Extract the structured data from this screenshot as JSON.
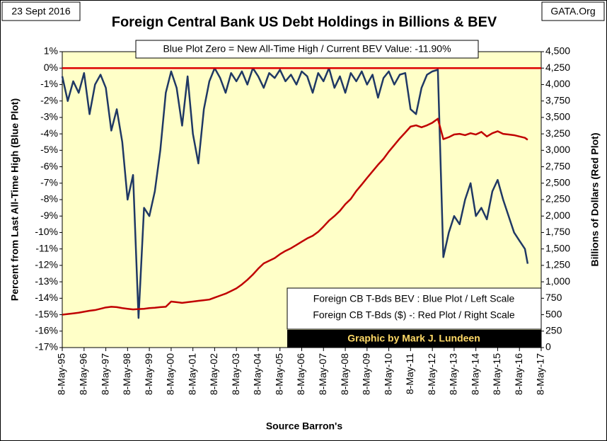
{
  "chart_data": {
    "type": "line",
    "title": "Foreign Central Bank US Debt Holdings in Billions & BEV",
    "date_label": "23 Sept 2016",
    "source_site": "GATA.Org",
    "annotation": "Blue Plot Zero = New All-Time High / Current BEV Value: -11.90%",
    "legend_lines": [
      "Foreign CB T-Bds BEV : Blue Plot / Left Scale",
      "Foreign CB T-Bds ($)  -: Red Plot / Right Scale"
    ],
    "credit": "Graphic by Mark J. Lundeen",
    "xlabel": "Source Barron's",
    "ylabel": "Percent from Last All-Time High     (Blue Plot)",
    "y2label": "Billions of Dollars    (Red Plot)",
    "hline": 0,
    "hline_color": "#dd0000",
    "x": [
      "1995-05-08",
      "1995-08-08",
      "1995-11-08",
      "1996-02-08",
      "1996-05-08",
      "1996-08-08",
      "1996-11-08",
      "1997-02-08",
      "1997-05-08",
      "1997-08-08",
      "1997-11-08",
      "1998-02-08",
      "1998-05-08",
      "1998-08-08",
      "1998-11-08",
      "1999-02-08",
      "1999-05-08",
      "1999-08-08",
      "1999-11-08",
      "2000-02-08",
      "2000-05-08",
      "2000-08-08",
      "2000-11-08",
      "2001-02-08",
      "2001-05-08",
      "2001-08-08",
      "2001-11-08",
      "2002-02-08",
      "2002-05-08",
      "2002-08-08",
      "2002-11-08",
      "2003-02-08",
      "2003-05-08",
      "2003-08-08",
      "2003-11-08",
      "2004-02-08",
      "2004-05-08",
      "2004-08-08",
      "2004-11-08",
      "2005-02-08",
      "2005-05-08",
      "2005-08-08",
      "2005-11-08",
      "2006-02-08",
      "2006-05-08",
      "2006-08-08",
      "2006-11-08",
      "2007-02-08",
      "2007-05-08",
      "2007-08-08",
      "2007-11-08",
      "2008-02-08",
      "2008-05-08",
      "2008-08-08",
      "2008-11-08",
      "2009-02-08",
      "2009-05-08",
      "2009-08-08",
      "2009-11-08",
      "2010-02-08",
      "2010-05-08",
      "2010-08-08",
      "2010-11-08",
      "2011-02-08",
      "2011-05-08",
      "2011-08-08",
      "2011-11-08",
      "2012-02-08",
      "2012-05-08",
      "2012-08-08",
      "2012-11-08",
      "2013-02-08",
      "2013-05-08",
      "2013-08-08",
      "2013-11-08",
      "2014-02-08",
      "2014-05-08",
      "2014-08-08",
      "2014-11-08",
      "2015-02-08",
      "2015-05-08",
      "2015-08-08",
      "2015-11-08",
      "2016-02-08",
      "2016-05-08",
      "2016-08-08",
      "2016-09-23"
    ],
    "series": [
      {
        "name": "Foreign CB T-Bds BEV",
        "color": "#1f3864",
        "axis": "y",
        "values": [
          -0.5,
          -2,
          -0.8,
          -1.5,
          -0.3,
          -2.8,
          -1,
          -0.4,
          -1.2,
          -3.8,
          -2.5,
          -4.5,
          -8,
          -6.5,
          -15.2,
          -8.5,
          -9,
          -7.5,
          -5,
          -1.5,
          -0.2,
          -1.2,
          -3.5,
          -0.5,
          -4,
          -5.8,
          -2.5,
          -0.8,
          0,
          -0.6,
          -1.5,
          -0.3,
          -0.8,
          -0.2,
          -1,
          0,
          -0.5,
          -1.2,
          -0.3,
          -0.6,
          -0.1,
          -0.8,
          -0.4,
          -1,
          -0.2,
          -0.5,
          -1.5,
          -0.3,
          -0.8,
          0,
          -1.2,
          -0.5,
          -1.5,
          -0.3,
          -0.8,
          -0.2,
          -1,
          -0.4,
          -1.8,
          -0.6,
          -0.2,
          -1,
          -0.4,
          -0.3,
          -2.5,
          -2.8,
          -1.2,
          -0.4,
          -0.2,
          -0.1,
          -11.5,
          -10,
          -9,
          -9.5,
          -8,
          -7,
          -9,
          -8.5,
          -9.2,
          -7.5,
          -6.8,
          -8,
          -9,
          -10,
          -10.5,
          -11,
          -11.9
        ]
      },
      {
        "name": "Foreign CB T-Bds ($)",
        "color": "#c00000",
        "axis": "y2",
        "values": [
          500,
          510,
          520,
          530,
          545,
          560,
          570,
          590,
          610,
          620,
          615,
          600,
          590,
          580,
          585,
          590,
          600,
          605,
          615,
          620,
          700,
          690,
          680,
          690,
          700,
          710,
          720,
          730,
          760,
          790,
          820,
          860,
          900,
          960,
          1030,
          1110,
          1200,
          1280,
          1320,
          1360,
          1420,
          1470,
          1510,
          1560,
          1610,
          1660,
          1700,
          1760,
          1840,
          1930,
          2000,
          2080,
          2180,
          2260,
          2380,
          2480,
          2580,
          2680,
          2780,
          2870,
          2980,
          3080,
          3180,
          3270,
          3360,
          3380,
          3350,
          3380,
          3420,
          3480,
          3170,
          3200,
          3240,
          3250,
          3230,
          3260,
          3240,
          3280,
          3210,
          3260,
          3290,
          3250,
          3240,
          3230,
          3210,
          3190,
          3160
        ]
      }
    ],
    "xlim": [
      "1995-05-08",
      "2017-05-08"
    ],
    "xticks": [
      {
        "value": "1995-05-08",
        "label": "8-May-95"
      },
      {
        "value": "1996-05-08",
        "label": "8-May-96"
      },
      {
        "value": "1997-05-08",
        "label": "8-May-97"
      },
      {
        "value": "1998-05-08",
        "label": "8-May-98"
      },
      {
        "value": "1999-05-08",
        "label": "8-May-99"
      },
      {
        "value": "2000-05-08",
        "label": "8-May-00"
      },
      {
        "value": "2001-05-08",
        "label": "8-May-01"
      },
      {
        "value": "2002-05-08",
        "label": "8-May-02"
      },
      {
        "value": "2003-05-08",
        "label": "8-May-03"
      },
      {
        "value": "2004-05-08",
        "label": "8-May-04"
      },
      {
        "value": "2005-05-08",
        "label": "8-May-05"
      },
      {
        "value": "2006-05-08",
        "label": "8-May-06"
      },
      {
        "value": "2007-05-08",
        "label": "8-May-07"
      },
      {
        "value": "2008-05-08",
        "label": "8-May-08"
      },
      {
        "value": "2009-05-08",
        "label": "8-May-09"
      },
      {
        "value": "2010-05-08",
        "label": "8-May-10"
      },
      {
        "value": "2011-05-08",
        "label": "8-May-11"
      },
      {
        "value": "2012-05-08",
        "label": "8-May-12"
      },
      {
        "value": "2013-05-08",
        "label": "8-May-13"
      },
      {
        "value": "2014-05-08",
        "label": "8-May-14"
      },
      {
        "value": "2015-05-08",
        "label": "8-May-15"
      },
      {
        "value": "2016-05-08",
        "label": "8-May-16"
      },
      {
        "value": "2017-05-08",
        "label": "8-May-17"
      }
    ],
    "ylim": [
      -17,
      1
    ],
    "yticks": [
      {
        "value": 1,
        "label": "1%"
      },
      {
        "value": 0,
        "label": "0%"
      },
      {
        "value": -1,
        "label": "-1%"
      },
      {
        "value": -2,
        "label": "-2%"
      },
      {
        "value": -3,
        "label": "-3%"
      },
      {
        "value": -4,
        "label": "-4%"
      },
      {
        "value": -5,
        "label": "-5%"
      },
      {
        "value": -6,
        "label": "-6%"
      },
      {
        "value": -7,
        "label": "-7%"
      },
      {
        "value": -8,
        "label": "-8%"
      },
      {
        "value": -9,
        "label": "-9%"
      },
      {
        "value": -10,
        "label": "-10%"
      },
      {
        "value": -11,
        "label": "-11%"
      },
      {
        "value": -12,
        "label": "-12%"
      },
      {
        "value": -13,
        "label": "-13%"
      },
      {
        "value": -14,
        "label": "-14%"
      },
      {
        "value": -15,
        "label": "-15%"
      },
      {
        "value": -16,
        "label": "-16%"
      },
      {
        "value": -17,
        "label": "-17%"
      }
    ],
    "y2lim": [
      0,
      4500
    ],
    "y2ticks": [
      0,
      250,
      500,
      750,
      {
        "value": 1000,
        "label": "1,000"
      },
      {
        "value": 1250,
        "label": "1,250"
      },
      {
        "value": 1500,
        "label": "1,500"
      },
      {
        "value": 1750,
        "label": "1,750"
      },
      {
        "value": 2000,
        "label": "2,000"
      },
      {
        "value": 2250,
        "label": "2,250"
      },
      {
        "value": 2500,
        "label": "2,500"
      },
      {
        "value": 2750,
        "label": "2,750"
      },
      {
        "value": 3000,
        "label": "3,000"
      },
      {
        "value": 3250,
        "label": "3,250"
      },
      {
        "value": 3500,
        "label": "3,500"
      },
      {
        "value": 3750,
        "label": "3,750"
      },
      {
        "value": 4000,
        "label": "4,000"
      },
      {
        "value": 4250,
        "label": "4,250"
      },
      {
        "value": 4500,
        "label": "4,500"
      }
    ],
    "grid": false
  }
}
